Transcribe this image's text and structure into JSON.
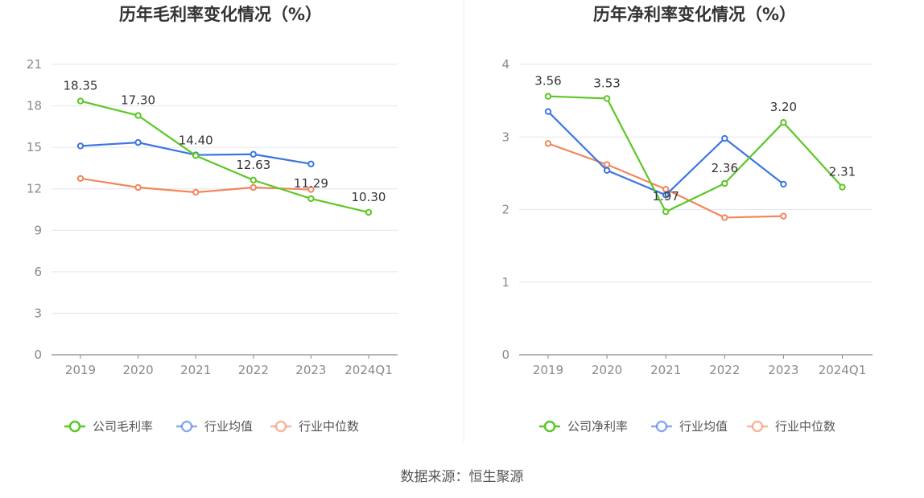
{
  "source": "数据来源：恒生聚源",
  "colors": {
    "company": "#5cc726",
    "industry_avg": "#3d77de",
    "industry_median": "#f2875d"
  },
  "chart_data": [
    {
      "type": "line",
      "title": "历年毛利率变化情况（%）",
      "categories": [
        "2019",
        "2020",
        "2021",
        "2022",
        "2023",
        "2024Q1"
      ],
      "ylim": [
        0,
        21
      ],
      "yticks": [
        0,
        3,
        6,
        9,
        12,
        15,
        18,
        21
      ],
      "grid": true,
      "legend": "bottom",
      "series": [
        {
          "name": "公司毛利率",
          "key": "company",
          "values": [
            18.35,
            17.3,
            14.4,
            12.63,
            11.29,
            10.3
          ],
          "labels": [
            "18.35",
            "17.30",
            "14.40",
            "12.63",
            "11.29",
            "10.30"
          ]
        },
        {
          "name": "行业均值",
          "key": "industry_avg",
          "values": [
            15.1,
            15.35,
            14.45,
            14.5,
            13.8,
            null
          ]
        },
        {
          "name": "行业中位数",
          "key": "industry_median",
          "values": [
            12.75,
            12.1,
            11.75,
            12.1,
            11.95,
            null
          ]
        }
      ]
    },
    {
      "type": "line",
      "title": "历年净利率变化情况（%）",
      "categories": [
        "2019",
        "2020",
        "2021",
        "2022",
        "2023",
        "2024Q1"
      ],
      "ylim": [
        0,
        4
      ],
      "yticks": [
        0,
        1,
        2,
        3,
        4
      ],
      "grid": true,
      "legend": "bottom",
      "series": [
        {
          "name": "公司净利率",
          "key": "company",
          "values": [
            3.56,
            3.53,
            1.97,
            2.36,
            3.2,
            2.31
          ],
          "labels": [
            "3.56",
            "3.53",
            "1.97",
            "2.36",
            "3.20",
            "2.31"
          ]
        },
        {
          "name": "行业均值",
          "key": "industry_avg",
          "values": [
            3.35,
            2.54,
            2.2,
            2.98,
            2.35,
            null
          ]
        },
        {
          "name": "行业中位数",
          "key": "industry_median",
          "values": [
            2.91,
            2.62,
            2.28,
            1.89,
            1.91,
            null
          ]
        }
      ]
    }
  ]
}
